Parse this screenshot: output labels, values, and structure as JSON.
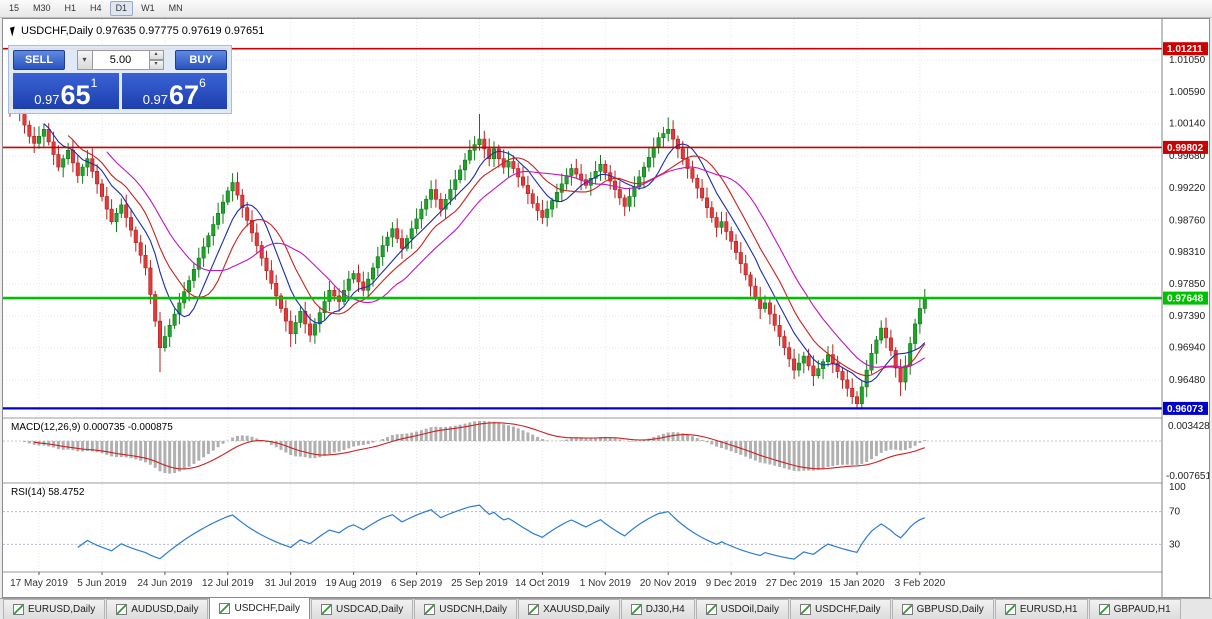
{
  "window": {
    "timeframe_toolbar": [
      {
        "label": "15",
        "active": false
      },
      {
        "label": "M30",
        "active": false
      },
      {
        "label": "H1",
        "active": false
      },
      {
        "label": "H4",
        "active": false
      },
      {
        "label": "D1",
        "active": true
      },
      {
        "label": "W1",
        "active": false
      },
      {
        "label": "MN",
        "active": false
      }
    ]
  },
  "icons": {
    "dropdown_arrow": "▾",
    "spin_up": "▴",
    "spin_down": "▾"
  },
  "chart": {
    "header_text": "USDCHF,Daily 0.97635 0.97775 0.97619 0.97651"
  },
  "trade_panel": {
    "sell_label": "SELL",
    "buy_label": "BUY",
    "volume": "5.00",
    "sell_quote": {
      "prefix": "0.97",
      "big": "65",
      "sup": "1"
    },
    "buy_quote": {
      "prefix": "0.97",
      "big": "67",
      "sup": "6"
    }
  },
  "chart_data": {
    "type": "candlestick",
    "symbol": "USDCHF",
    "period": "Daily",
    "ohlc_header": {
      "open": "0.97635",
      "high": "0.97775",
      "low": "0.97619",
      "close": "0.97651"
    },
    "colors": {
      "up": "#1fa32a",
      "up_border": "#0f7a18",
      "down": "#e03a3a",
      "down_border": "#b61f1f"
    },
    "closes": [
      1.0038,
      1.0048,
      1.003,
      1.0012,
      0.9996,
      0.9986,
      0.9996,
      1.0006,
      0.9988,
      0.997,
      0.9952,
      0.9964,
      0.9976,
      0.9958,
      0.994,
      0.9952,
      0.9964,
      0.9946,
      0.9928,
      0.991,
      0.9892,
      0.9874,
      0.9886,
      0.9898,
      0.988,
      0.9862,
      0.9844,
      0.9826,
      0.9808,
      0.977,
      0.9732,
      0.9694,
      0.971,
      0.9726,
      0.9742,
      0.9758,
      0.9774,
      0.979,
      0.9806,
      0.9822,
      0.9838,
      0.9854,
      0.987,
      0.9886,
      0.9902,
      0.9918,
      0.993,
      0.9912,
      0.9894,
      0.9876,
      0.9858,
      0.984,
      0.9822,
      0.9804,
      0.9786,
      0.9768,
      0.975,
      0.9732,
      0.9714,
      0.973,
      0.9746,
      0.9728,
      0.9712,
      0.9728,
      0.9744,
      0.976,
      0.9776,
      0.9768,
      0.976,
      0.9776,
      0.9792,
      0.98,
      0.9788,
      0.9776,
      0.9792,
      0.9808,
      0.9824,
      0.984,
      0.9852,
      0.9864,
      0.985,
      0.9836,
      0.985,
      0.9864,
      0.9878,
      0.9892,
      0.9906,
      0.992,
      0.9906,
      0.9892,
      0.9906,
      0.992,
      0.9934,
      0.9948,
      0.9962,
      0.9976,
      0.9984,
      0.9992,
      0.9978,
      0.9964,
      0.9978,
      0.9964,
      0.9952,
      0.996,
      0.995,
      0.9938,
      0.9926,
      0.9914,
      0.99,
      0.989,
      0.988,
      0.9892,
      0.9904,
      0.9916,
      0.9928,
      0.994,
      0.995,
      0.9942,
      0.9934,
      0.9926,
      0.9936,
      0.9946,
      0.9956,
      0.9944,
      0.9932,
      0.992,
      0.9908,
      0.9896,
      0.991,
      0.9924,
      0.9938,
      0.9952,
      0.9966,
      0.998,
      0.9994,
      1.0,
      1.0006,
      0.9992,
      0.9978,
      0.9964,
      0.995,
      0.9936,
      0.9922,
      0.9908,
      0.9894,
      0.988,
      0.9866,
      0.9874,
      0.986,
      0.9846,
      0.983,
      0.9814,
      0.9798,
      0.9782,
      0.9766,
      0.975,
      0.9758,
      0.9742,
      0.9726,
      0.971,
      0.9694,
      0.9678,
      0.9662,
      0.9672,
      0.9682,
      0.9668,
      0.9654,
      0.9664,
      0.9674,
      0.9684,
      0.9672,
      0.966,
      0.9648,
      0.9636,
      0.9624,
      0.9614,
      0.9638,
      0.9662,
      0.9686,
      0.9705,
      0.9722,
      0.9708,
      0.969,
      0.9665,
      0.9645,
      0.9668,
      0.97,
      0.9728,
      0.975,
      0.9765
    ],
    "wick_spikes": [
      {
        "i": 1,
        "high": 1.0072
      },
      {
        "i": 31,
        "low": 0.9659
      },
      {
        "i": 58,
        "low": 0.9695
      },
      {
        "i": 97,
        "high": 1.0028
      },
      {
        "i": 136,
        "high": 1.0023
      },
      {
        "i": 175,
        "low": 0.9607
      },
      {
        "i": 184,
        "low": 0.9625
      },
      {
        "i": 189,
        "high": 0.9778
      }
    ],
    "price_axis_ticks": [
      {
        "v": 1.0105,
        "label": "1.01050"
      },
      {
        "v": 1.0059,
        "label": "1.00590"
      },
      {
        "v": 1.0014,
        "label": "1.00140"
      },
      {
        "v": 0.9968,
        "label": "0.99680"
      },
      {
        "v": 0.9922,
        "label": "0.99220"
      },
      {
        "v": 0.9876,
        "label": "0.98760"
      },
      {
        "v": 0.9831,
        "label": "0.98310"
      },
      {
        "v": 0.9785,
        "label": "0.97850"
      },
      {
        "v": 0.9739,
        "label": "0.97390"
      },
      {
        "v": 0.9694,
        "label": "0.96940"
      },
      {
        "v": 0.9648,
        "label": "0.96480"
      }
    ],
    "hlines": [
      {
        "v": 1.01211,
        "label": "1.01211",
        "color": "#cc0000",
        "width": 1.6
      },
      {
        "v": 0.99802,
        "label": "0.99802",
        "color": "#cc0000",
        "width": 1.6
      },
      {
        "v": 0.97648,
        "label": "0.97648",
        "color": "#00c100",
        "width": 2.6
      },
      {
        "v": 0.96073,
        "label": "0.96073",
        "color": "#0000cc",
        "width": 2.2
      }
    ],
    "date_labels": [
      {
        "i": 6,
        "label": "17 May 2019"
      },
      {
        "i": 19,
        "label": "5 Jun 2019"
      },
      {
        "i": 32,
        "label": "24 Jun 2019"
      },
      {
        "i": 45,
        "label": "12 Jul 2019"
      },
      {
        "i": 58,
        "label": "31 Jul 2019"
      },
      {
        "i": 71,
        "label": "19 Aug 2019"
      },
      {
        "i": 84,
        "label": "6 Sep 2019"
      },
      {
        "i": 97,
        "label": "25 Sep 2019"
      },
      {
        "i": 110,
        "label": "14 Oct 2019"
      },
      {
        "i": 123,
        "label": "1 Nov 2019"
      },
      {
        "i": 136,
        "label": "20 Nov 2019"
      },
      {
        "i": 149,
        "label": "9 Dec 2019"
      },
      {
        "i": 162,
        "label": "27 Dec 2019"
      },
      {
        "i": 175,
        "label": "15 Jan 2020"
      },
      {
        "i": 188,
        "label": "3 Feb 2020"
      }
    ],
    "moving_averages": [
      {
        "period": 8,
        "color": "#1b2db0"
      },
      {
        "period": 13,
        "color": "#cc2020"
      },
      {
        "period": 21,
        "color": "#c214c2"
      }
    ],
    "indicators": {
      "macd": {
        "label": "MACD(12,26,9) 0.000735 -0.000875",
        "axis_labels": [
          "0.003428",
          "-0.007651"
        ]
      },
      "rsi": {
        "label": "RSI(14) 58.4752",
        "axis_labels": [
          {
            "v": 100,
            "label": "100"
          },
          {
            "v": 70,
            "label": "70"
          },
          {
            "v": 30,
            "label": "30"
          }
        ],
        "levels": [
          70,
          30
        ]
      }
    }
  },
  "tabs": [
    {
      "label": "EURUSD,Daily",
      "active": false
    },
    {
      "label": "AUDUSD,Daily",
      "active": false
    },
    {
      "label": "USDCHF,Daily",
      "active": true
    },
    {
      "label": "USDCAD,Daily",
      "active": false
    },
    {
      "label": "USDCNH,Daily",
      "active": false
    },
    {
      "label": "XAUUSD,Daily",
      "active": false
    },
    {
      "label": "DJ30,H4",
      "active": false
    },
    {
      "label": "USDOil,Daily",
      "active": false
    },
    {
      "label": "USDCHF,Daily",
      "active": false
    },
    {
      "label": "GBPUSD,Daily",
      "active": false
    },
    {
      "label": "EURUSD,H1",
      "active": false
    },
    {
      "label": "GBPAUD,H1",
      "active": false
    }
  ]
}
